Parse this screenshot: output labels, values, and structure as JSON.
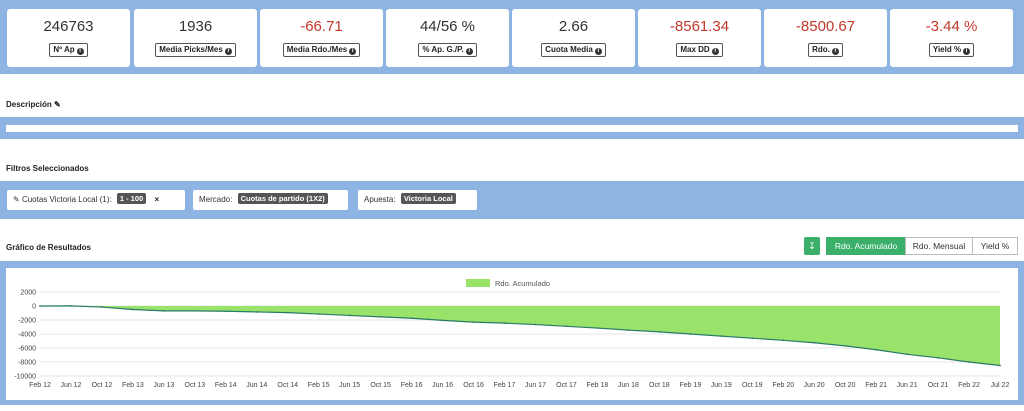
{
  "stats": [
    {
      "value": "246763",
      "label": "Nº Ap",
      "negative": false
    },
    {
      "value": "1936",
      "label": "Media Picks/Mes",
      "negative": false
    },
    {
      "value": "-66.71",
      "label": "Media Rdo./Mes",
      "negative": true
    },
    {
      "value": "44/56 %",
      "label": "% Ap. G./P.",
      "negative": false
    },
    {
      "value": "2.66",
      "label": "Cuota Media",
      "negative": false
    },
    {
      "value": "-8561.34",
      "label": "Max DD",
      "negative": true
    },
    {
      "value": "-8500.67",
      "label": "Rdo.",
      "negative": true
    },
    {
      "value": "-3.44 %",
      "label": "Yield %",
      "negative": true
    }
  ],
  "sections": {
    "description": "Descripción",
    "filters": "Filtros Seleccionados",
    "chart": "Gráfico de Resultados"
  },
  "filters": {
    "odds_label": "Cuotas Victoria Local (1):",
    "odds_value": "1 - 100",
    "close": "×",
    "market_label": "Mercado:",
    "market_value": "Cuotas de partido (1X2)",
    "bet_label": "Apuesta:",
    "bet_value": "Victoria Local"
  },
  "chart_controls": {
    "download_icon": "download-icon",
    "buttons": [
      "Rdo. Acumulado",
      "Rdo. Mensual",
      "Yield %"
    ],
    "active": "Rdo. Acumulado"
  },
  "colors": {
    "band": "#8db4e2",
    "accent_green": "#3ab06a",
    "area_fill": "#99e36b",
    "line": "#2a7a6a",
    "negative_text": "#c0392b"
  },
  "chart_data": {
    "type": "area",
    "legend": "Rdo. Acumulado",
    "legend_position": "top-center",
    "grid": true,
    "ylim": [
      -10000,
      2000
    ],
    "yticks": [
      2000,
      0,
      -2000,
      -4000,
      -6000,
      -8000,
      -10000
    ],
    "xticks": [
      "Feb 12",
      "Jun 12",
      "Oct 12",
      "Feb 13",
      "Jun 13",
      "Oct 13",
      "Feb 14",
      "Jun 14",
      "Oct 14",
      "Feb 15",
      "Jun 15",
      "Oct 15",
      "Feb 16",
      "Jun 16",
      "Oct 16",
      "Feb 17",
      "Jun 17",
      "Oct 17",
      "Feb 18",
      "Jun 18",
      "Oct 18",
      "Feb 19",
      "Jun 19",
      "Oct 19",
      "Feb 20",
      "Jun 20",
      "Oct 20",
      "Feb 21",
      "Jun 21",
      "Oct 21",
      "Feb 22",
      "Jul 22"
    ],
    "series": [
      {
        "name": "Rdo. Acumulado",
        "x": [
          "Feb 12",
          "Jun 12",
          "Oct 12",
          "Feb 13",
          "Jun 13",
          "Oct 13",
          "Feb 14",
          "Jun 14",
          "Oct 14",
          "Feb 15",
          "Jun 15",
          "Oct 15",
          "Feb 16",
          "Jun 16",
          "Oct 16",
          "Feb 17",
          "Jun 17",
          "Oct 17",
          "Feb 18",
          "Jun 18",
          "Oct 18",
          "Feb 19",
          "Jun 19",
          "Oct 19",
          "Feb 20",
          "Jun 20",
          "Oct 20",
          "Feb 21",
          "Jun 21",
          "Oct 21",
          "Feb 22",
          "Jul 22"
        ],
        "values": [
          0,
          20,
          -150,
          -500,
          -700,
          -700,
          -750,
          -850,
          -950,
          -1150,
          -1350,
          -1550,
          -1750,
          -2050,
          -2300,
          -2450,
          -2650,
          -2900,
          -3150,
          -3450,
          -3700,
          -4000,
          -4300,
          -4600,
          -4900,
          -5250,
          -5700,
          -6250,
          -6900,
          -7400,
          -8000,
          -8500
        ]
      }
    ]
  }
}
